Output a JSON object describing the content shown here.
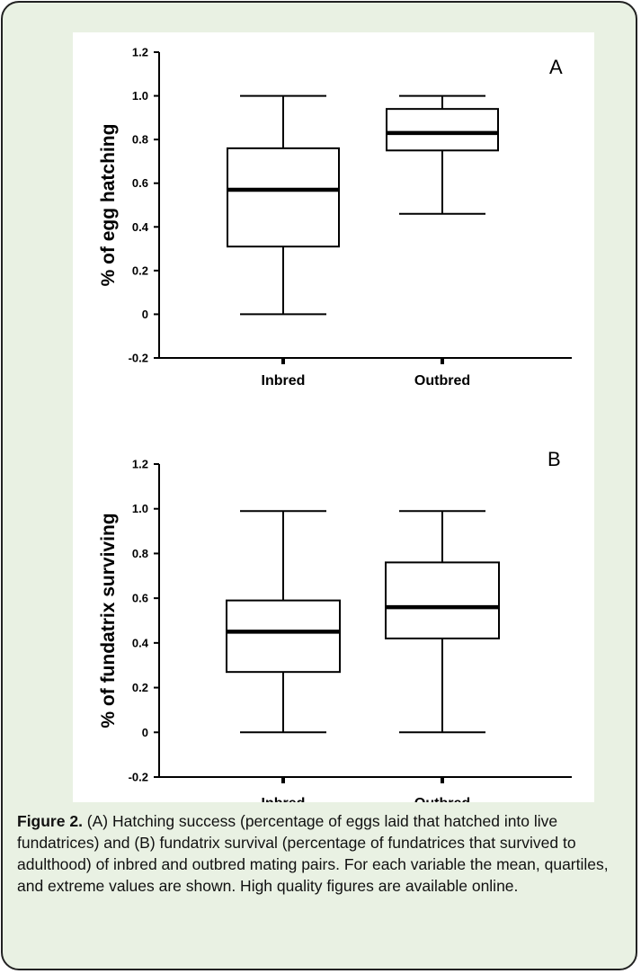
{
  "chart_data": [
    {
      "type": "box",
      "panel_label": "A",
      "ylabel": "% of egg hatching",
      "ylim": [
        -0.2,
        1.2
      ],
      "yticks": [
        "-0.2",
        "0",
        "0.2",
        "0.4",
        "0.6",
        "0.8",
        "1.0",
        "1.2"
      ],
      "categories": [
        "Inbred",
        "Outbred"
      ],
      "boxes": [
        {
          "category": "Inbred",
          "min": 0.0,
          "q1": 0.31,
          "median": 0.57,
          "q3": 0.76,
          "max": 1.0
        },
        {
          "category": "Outbred",
          "min": 0.46,
          "q1": 0.75,
          "median": 0.83,
          "q3": 0.94,
          "max": 1.0
        }
      ],
      "grid": false
    },
    {
      "type": "box",
      "panel_label": "B",
      "ylabel": "% of fundatrix surviving",
      "ylim": [
        -0.2,
        1.2
      ],
      "yticks": [
        "-0.2",
        "0",
        "0.2",
        "0.4",
        "0.6",
        "0.8",
        "1.0",
        "1.2"
      ],
      "categories": [
        "Inbred",
        "Outbred"
      ],
      "boxes": [
        {
          "category": "Inbred",
          "min": 0.0,
          "q1": 0.27,
          "median": 0.45,
          "q3": 0.59,
          "max": 0.99
        },
        {
          "category": "Outbred",
          "min": 0.0,
          "q1": 0.42,
          "median": 0.56,
          "q3": 0.76,
          "max": 0.99
        }
      ],
      "grid": false
    }
  ],
  "caption": {
    "label": "Figure 2.",
    "text": " (A) Hatching success (percentage of eggs laid that hatched into live fundatrices) and (B) fundatrix survival (percentage of fundatrices that survived to adulthood) of inbred and outbred mating pairs. For each variable the mean, quartiles, and extreme values are shown. High quality figures are available online."
  },
  "colors": {
    "frame_background": "#e9f1e3",
    "frame_border": "#222222",
    "plot_background": "#ffffff",
    "ink": "#000000"
  }
}
